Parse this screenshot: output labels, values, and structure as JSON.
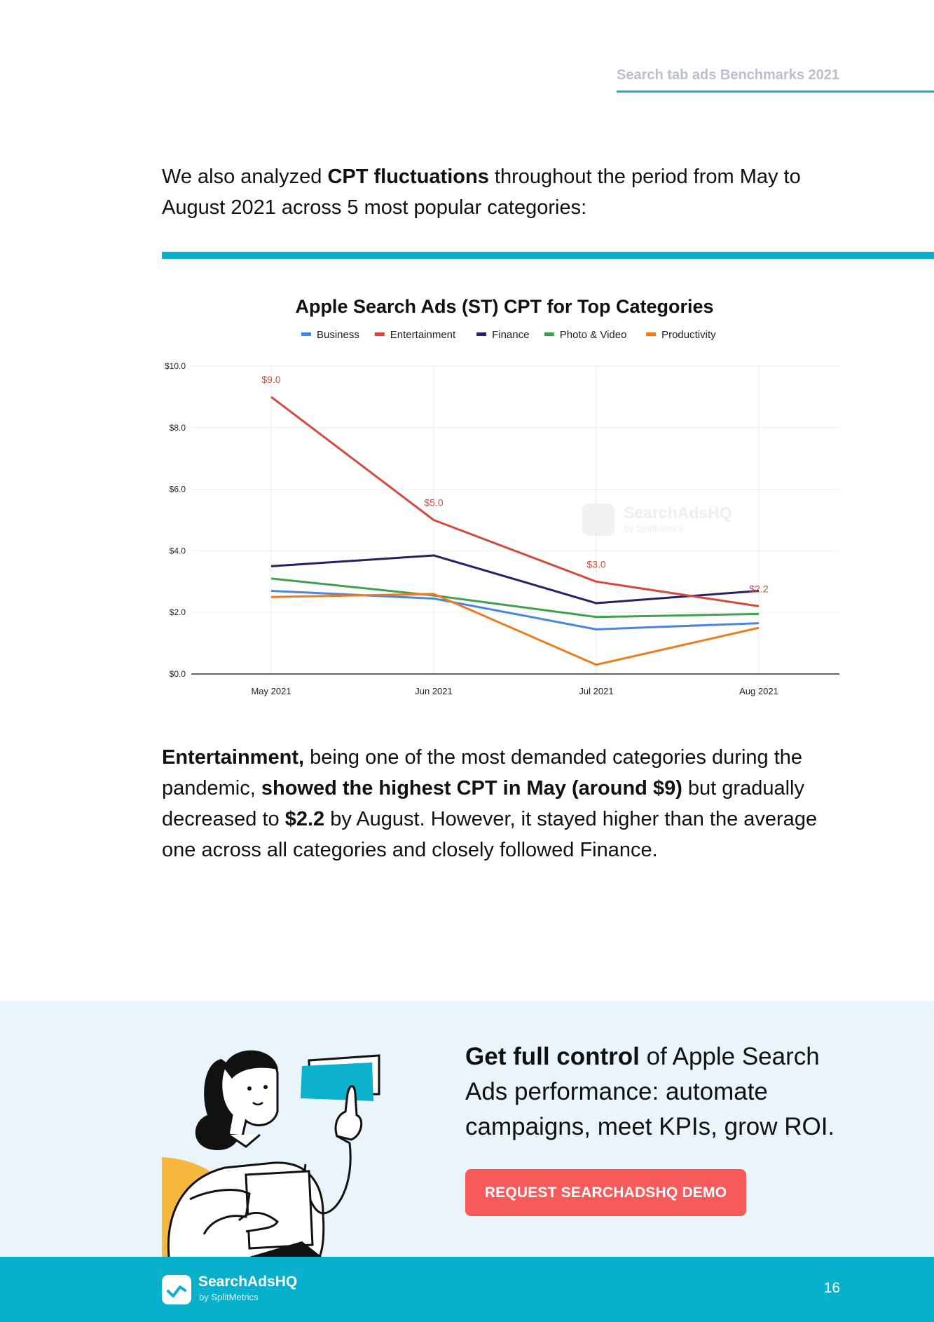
{
  "header": {
    "title": "Search tab ads Benchmarks 2021"
  },
  "intro": {
    "part1": "We also analyzed ",
    "bold": "CPT fluctuations",
    "part2": " throughout the period from May to August 2021 across 5 most popular categories:"
  },
  "chart_data": {
    "type": "line",
    "title": "Apple Search Ads (ST) CPT for Top Categories",
    "xlabel": "",
    "ylabel": "",
    "categories": [
      "May 2021",
      "Jun 2021",
      "Jul 2021",
      "Aug 2021"
    ],
    "y_ticks": [
      "$0.0",
      "$2.0",
      "$4.0",
      "$6.0",
      "$8.0",
      "$10.0"
    ],
    "ylim": [
      0,
      10
    ],
    "grid": true,
    "legend_position": "top",
    "series": [
      {
        "name": "Business",
        "color": "#4a86e0",
        "values": [
          2.7,
          2.45,
          1.45,
          1.65
        ]
      },
      {
        "name": "Entertainment",
        "color": "#d24b3e",
        "values": [
          9.0,
          5.0,
          3.0,
          2.2
        ],
        "labels": [
          "$9.0",
          "$5.0",
          "$3.0",
          "$2.2"
        ]
      },
      {
        "name": "Finance",
        "color": "#2b1f63",
        "values": [
          3.5,
          3.85,
          2.3,
          2.7
        ]
      },
      {
        "name": "Photo & Video",
        "color": "#3fa14f",
        "values": [
          3.1,
          2.55,
          1.85,
          1.95
        ]
      },
      {
        "name": "Productivity",
        "color": "#ee7b1d",
        "values": [
          2.5,
          2.6,
          0.3,
          1.5
        ]
      }
    ],
    "watermark": {
      "brand": "SearchAdsHQ",
      "sub": "by SplitMetrics"
    }
  },
  "body": {
    "b1": "Entertainment,",
    "t1": " being one of the most demanded categories during the pandemic, ",
    "b2": "showed the highest CPT in May (around $9)",
    "t2": " but gradually decreased to ",
    "b3": "$2.2",
    "t3": " by August. However, it stayed higher than the average one across all categories and closely followed Finance."
  },
  "promo": {
    "bold": "Get full control",
    "text": " of Apple Search Ads performance: automate campaigns, meet KPIs, grow ROI.",
    "cta_label": "REQUEST SEARCHADSHQ DEMO"
  },
  "footer": {
    "brand": "SearchAdsHQ",
    "sub": "by SplitMetrics",
    "page": "16"
  }
}
